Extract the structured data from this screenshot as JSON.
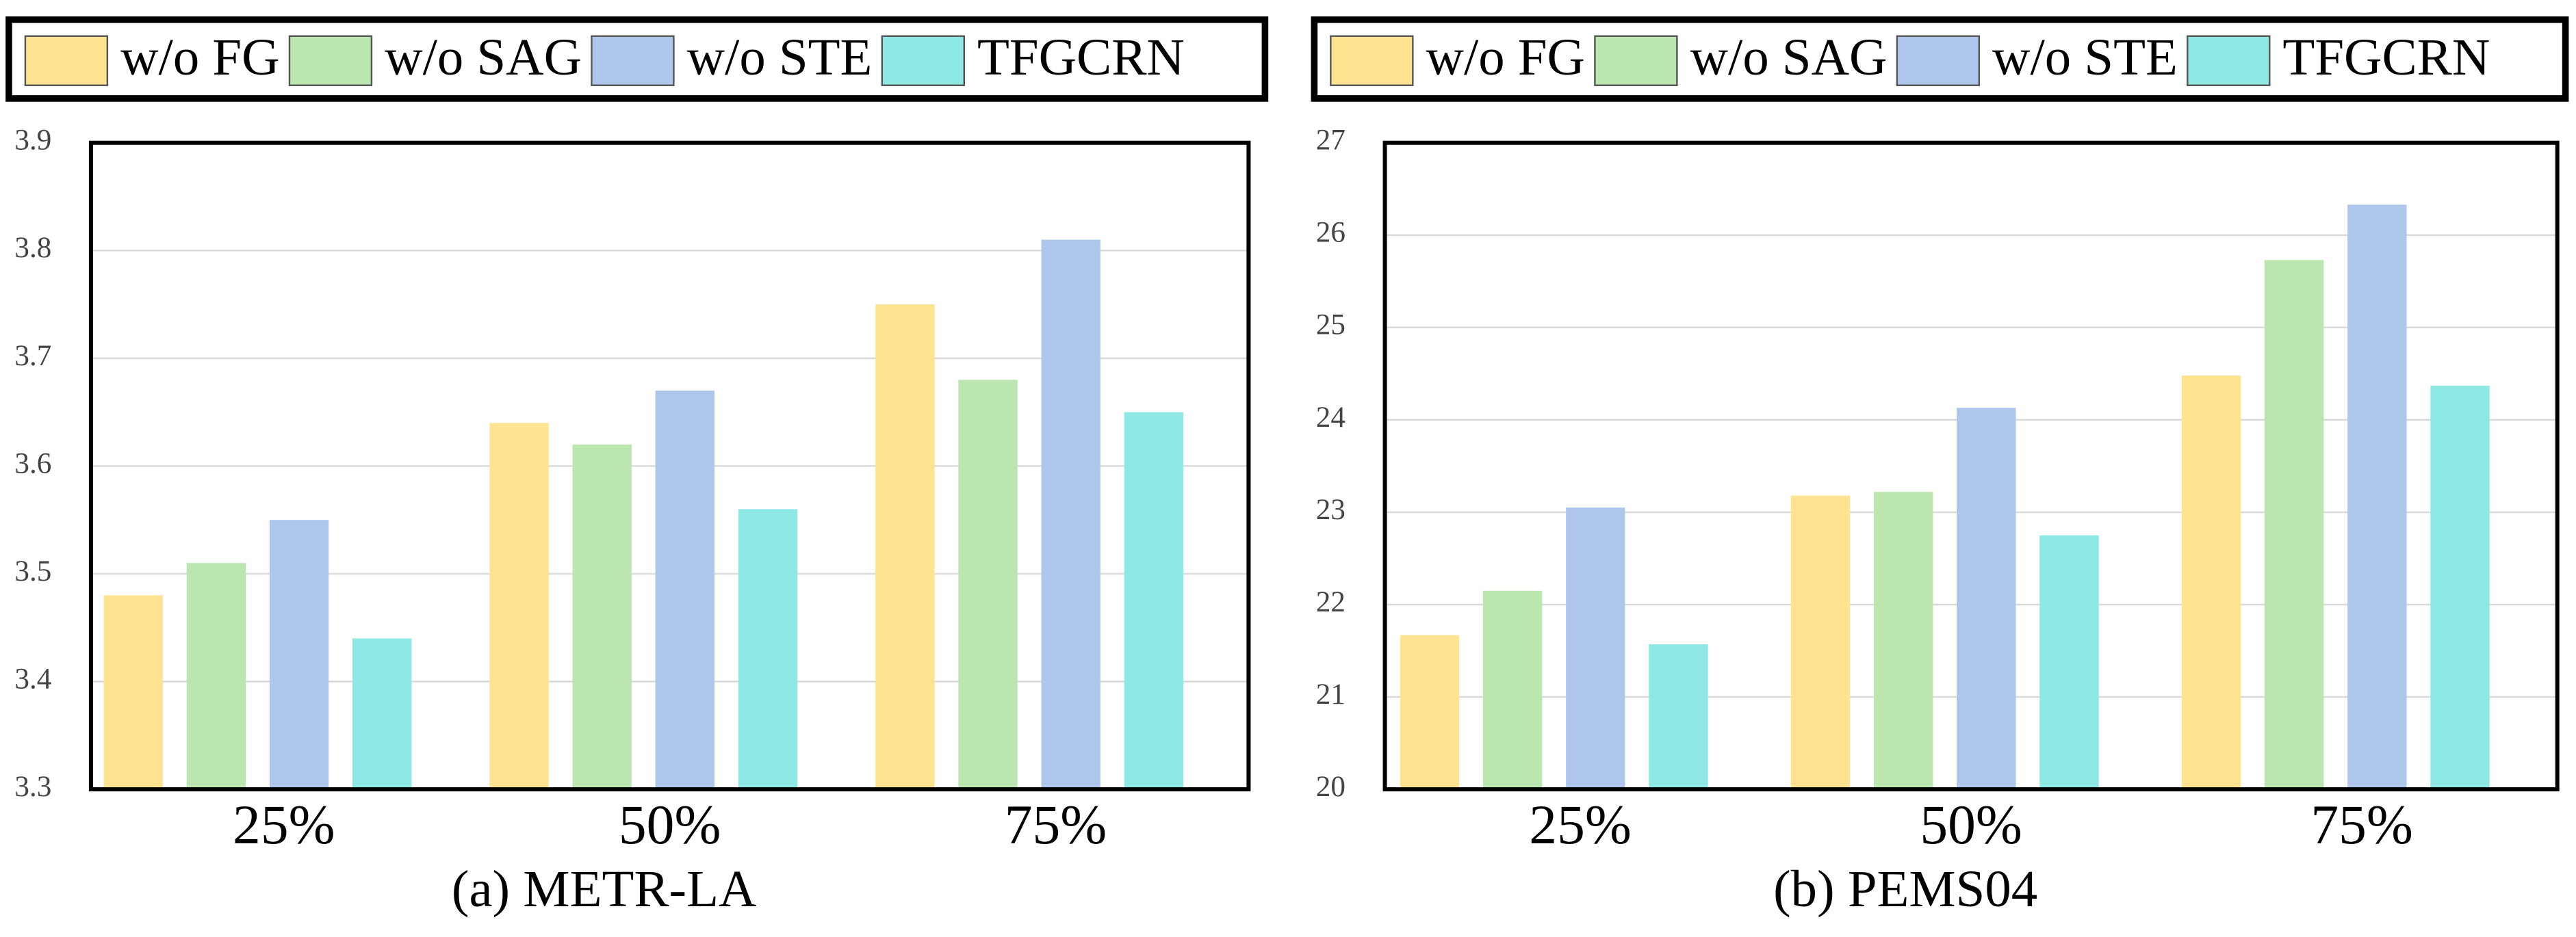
{
  "chart_data": [
    {
      "type": "bar",
      "title": "(a) METR-LA",
      "categories": [
        "25%",
        "50%",
        "75%"
      ],
      "series": [
        {
          "name": "w/o FG",
          "color": "#ffe391",
          "values": [
            3.48,
            3.64,
            3.75
          ]
        },
        {
          "name": "w/o SAG",
          "color": "#bbe6b0",
          "values": [
            3.51,
            3.62,
            3.68
          ]
        },
        {
          "name": "w/o STE",
          "color": "#aec6ec",
          "values": [
            3.55,
            3.67,
            3.81
          ]
        },
        {
          "name": "TFGCRN",
          "color": "#8ee9e5",
          "values": [
            3.44,
            3.56,
            3.65
          ]
        }
      ],
      "ylim": [
        3.3,
        3.9
      ],
      "yticks": [
        3.3,
        3.4,
        3.5,
        3.6,
        3.7,
        3.8,
        3.9
      ],
      "grid": true,
      "legend": "top"
    },
    {
      "type": "bar",
      "title": "(b) PEMS04",
      "categories": [
        "25%",
        "50%",
        "75%"
      ],
      "series": [
        {
          "name": "w/o FG",
          "color": "#ffe391",
          "values": [
            21.67,
            23.18,
            24.48
          ]
        },
        {
          "name": "w/o SAG",
          "color": "#bbe6b0",
          "values": [
            22.15,
            23.22,
            25.73
          ]
        },
        {
          "name": "w/o STE",
          "color": "#aec6ec",
          "values": [
            23.05,
            24.13,
            26.33
          ]
        },
        {
          "name": "TFGCRN",
          "color": "#8ee9e5",
          "values": [
            21.57,
            22.75,
            24.37
          ]
        }
      ],
      "ylim": [
        20,
        27
      ],
      "yticks": [
        20,
        21,
        22,
        23,
        24,
        25,
        26,
        27
      ],
      "grid": true,
      "legend": "top"
    }
  ]
}
